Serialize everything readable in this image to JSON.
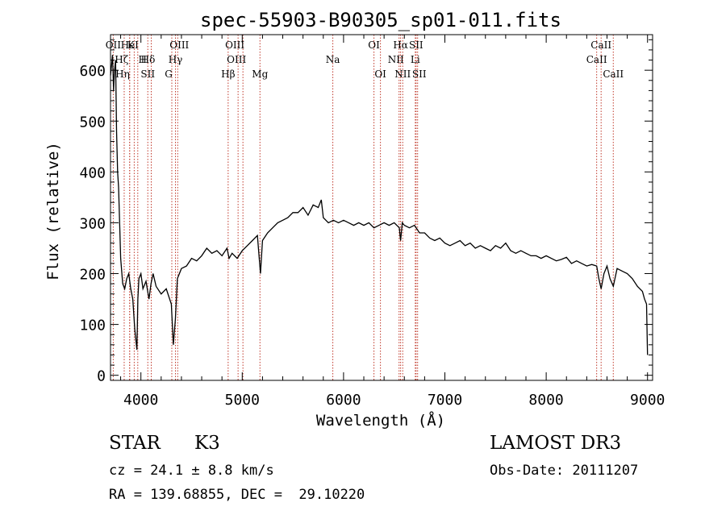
{
  "chart_data": {
    "type": "line",
    "title": "spec-55903-B90305_sp01-011.fits",
    "xlabel": "Wavelength (Å)",
    "ylabel": "Flux (relative)",
    "xlim": [
      3700,
      9050
    ],
    "ylim": [
      -10,
      670
    ],
    "xticks": [
      4000,
      5000,
      6000,
      7000,
      8000,
      9000
    ],
    "yticks": [
      0,
      100,
      200,
      300,
      400,
      500,
      600
    ],
    "grid": false,
    "series": [
      {
        "name": "flux",
        "x": [
          3700,
          3710,
          3720,
          3730,
          3740,
          3750,
          3760,
          3770,
          3780,
          3790,
          3800,
          3820,
          3840,
          3860,
          3880,
          3900,
          3920,
          3940,
          3960,
          3970,
          3980,
          4000,
          4020,
          4050,
          4080,
          4100,
          4120,
          4150,
          4200,
          4250,
          4300,
          4320,
          4340,
          4360,
          4380,
          4400,
          4450,
          4500,
          4550,
          4600,
          4650,
          4700,
          4750,
          4800,
          4850,
          4870,
          4900,
          4950,
          5000,
          5050,
          5100,
          5150,
          5180,
          5200,
          5250,
          5300,
          5350,
          5400,
          5450,
          5500,
          5550,
          5600,
          5650,
          5700,
          5750,
          5780,
          5800,
          5850,
          5900,
          5950,
          6000,
          6050,
          6100,
          6150,
          6200,
          6250,
          6300,
          6350,
          6400,
          6450,
          6500,
          6550,
          6563,
          6580,
          6600,
          6650,
          6700,
          6750,
          6800,
          6850,
          6900,
          6950,
          7000,
          7050,
          7100,
          7150,
          7200,
          7250,
          7300,
          7350,
          7400,
          7450,
          7500,
          7550,
          7600,
          7650,
          7700,
          7750,
          7800,
          7850,
          7900,
          7950,
          8000,
          8050,
          8100,
          8150,
          8200,
          8250,
          8300,
          8350,
          8400,
          8450,
          8498,
          8520,
          8542,
          8570,
          8600,
          8630,
          8662,
          8700,
          8750,
          8800,
          8850,
          8900,
          8950,
          8970,
          8990,
          9000
        ],
        "y": [
          590,
          610,
          630,
          560,
          600,
          620,
          480,
          400,
          370,
          300,
          230,
          180,
          170,
          190,
          200,
          170,
          150,
          90,
          50,
          150,
          190,
          200,
          170,
          185,
          150,
          180,
          200,
          175,
          160,
          170,
          140,
          60,
          110,
          190,
          200,
          210,
          215,
          230,
          225,
          235,
          250,
          240,
          245,
          235,
          250,
          230,
          240,
          230,
          245,
          255,
          265,
          275,
          200,
          265,
          280,
          290,
          300,
          305,
          310,
          320,
          320,
          330,
          315,
          335,
          330,
          345,
          310,
          300,
          305,
          300,
          305,
          300,
          295,
          300,
          295,
          300,
          290,
          295,
          300,
          295,
          300,
          290,
          265,
          300,
          295,
          290,
          295,
          280,
          280,
          270,
          265,
          270,
          260,
          255,
          260,
          265,
          255,
          260,
          250,
          255,
          250,
          245,
          255,
          250,
          260,
          245,
          240,
          245,
          240,
          235,
          235,
          230,
          235,
          230,
          225,
          228,
          232,
          220,
          225,
          220,
          215,
          218,
          215,
          190,
          170,
          200,
          215,
          190,
          175,
          210,
          205,
          200,
          190,
          175,
          165,
          150,
          140,
          40
        ]
      }
    ],
    "lines": [
      {
        "name": "Hζ",
        "x": 3889
      },
      {
        "name": "Hη",
        "x": 3835
      },
      {
        "name": "K",
        "x": 3934
      },
      {
        "name": "H",
        "x": 3969
      },
      {
        "name": "HeI",
        "x": 3889
      },
      {
        "name": "SII",
        "x": 4068
      },
      {
        "name": "Hδ",
        "x": 4102
      },
      {
        "name": "OII",
        "x": 3727
      },
      {
        "name": "OIII",
        "x": 4363
      },
      {
        "name": "Hγ",
        "x": 4341
      },
      {
        "name": "G",
        "x": 4305
      },
      {
        "name": "Hβ",
        "x": 4861
      },
      {
        "name": "OIII",
        "x": 4959
      },
      {
        "name": "OIII",
        "x": 5007
      },
      {
        "name": "Mg",
        "x": 5175
      },
      {
        "name": "Na",
        "x": 5894
      },
      {
        "name": "OI",
        "x": 6300
      },
      {
        "name": "OI",
        "x": 6364
      },
      {
        "name": "Hα",
        "x": 6563
      },
      {
        "name": "NII",
        "x": 6548
      },
      {
        "name": "NII",
        "x": 6584
      },
      {
        "name": "SII",
        "x": 6716
      },
      {
        "name": "SII",
        "x": 6731
      },
      {
        "name": "Li",
        "x": 6708
      },
      {
        "name": "CaII",
        "x": 8498
      },
      {
        "name": "CaII",
        "x": 8542
      },
      {
        "name": "CaII",
        "x": 8662
      }
    ]
  },
  "info": {
    "object_type": "STAR",
    "subclass": "K3",
    "survey": "LAMOST DR3",
    "cz": "cz = 24.1 ± 8.8 km/s",
    "obs_date": "Obs-Date: 20111207",
    "coords": "RA = 139.68855, DEC =  29.10220"
  },
  "colors": {
    "spectrum": "#000000",
    "line_markers": "#c0392b",
    "axes": "#000000"
  }
}
